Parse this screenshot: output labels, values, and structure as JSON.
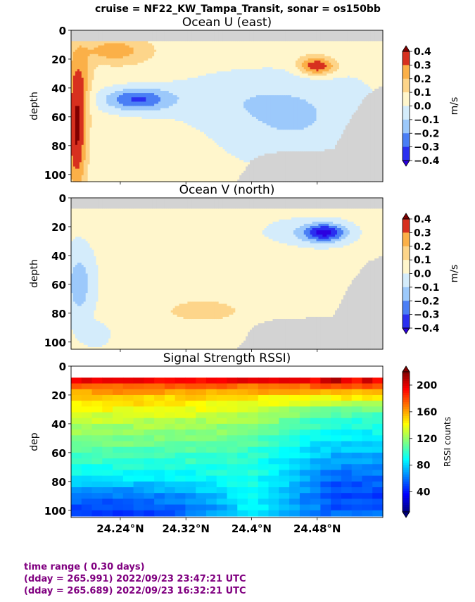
{
  "suptitle": "cruise = NF22_KW_Tampa_Transit,  sonar = os150bb",
  "footer": {
    "line1": "time range ( 0.30 days)",
    "line2": "(dday = 265.991) 2022/09/23 23:47:21 UTC",
    "line3": "(dday = 265.689) 2022/09/23 16:32:21 UTC"
  },
  "colors": {
    "nodata": "#d3d3d3",
    "footer_text": "#800080",
    "velocity_scale": [
      "#2c00e0",
      "#2a2ff0",
      "#4a7ef5",
      "#9cc9fb",
      "#d4ecfb",
      "#fff6cc",
      "#fdd58a",
      "#fbb048",
      "#f47b22",
      "#d7301f",
      "#800000"
    ]
  },
  "chart_data": [
    {
      "type": "heatmap",
      "id": "u",
      "title": "Ocean U (east)",
      "ylabel": "depth",
      "xlabel": "",
      "xlim": [
        24.18,
        24.56
      ],
      "ylim": [
        105,
        0
      ],
      "yticks": [
        0,
        20,
        40,
        60,
        80,
        100
      ],
      "xticks": [
        24.24,
        24.32,
        24.4,
        24.48
      ],
      "xtick_labels_shown": false,
      "colorbar": {
        "label": "m/s",
        "ticks": [
          0.4,
          0.3,
          0.2,
          0.1,
          0.0,
          -0.1,
          -0.2,
          -0.3,
          -0.4
        ],
        "tick_labels": [
          "0.4",
          "0.3",
          "0.2",
          "0.1",
          "0.0",
          "−0.1",
          "−0.2",
          "−0.3",
          "−0.4"
        ],
        "extend": "both"
      },
      "levels": [
        -0.4,
        -0.3,
        -0.2,
        -0.1,
        0.0,
        0.1,
        0.2,
        0.3,
        0.4
      ],
      "nodata_top_depth": 8,
      "bottom_mask_depth_by_x": [
        [
          24.18,
          106
        ],
        [
          24.38,
          106
        ],
        [
          24.39,
          98
        ],
        [
          24.4,
          90
        ],
        [
          24.42,
          85
        ],
        [
          24.5,
          83
        ],
        [
          24.52,
          62
        ],
        [
          24.54,
          45
        ],
        [
          24.56,
          38
        ]
      ],
      "features": [
        {
          "x": 24.187,
          "y": 75,
          "sx": 0.012,
          "sy": 40,
          "amp": 0.36
        },
        {
          "x": 24.19,
          "y": 35,
          "sx": 0.014,
          "sy": 26,
          "amp": 0.18
        },
        {
          "x": 24.232,
          "y": 14,
          "sx": 0.035,
          "sy": 8,
          "amp": 0.2
        },
        {
          "x": 24.28,
          "y": 35,
          "sx": 0.1,
          "sy": 35,
          "amp": 0.08
        },
        {
          "x": 24.48,
          "y": 25,
          "sx": 0.022,
          "sy": 6,
          "amp": 0.38
        },
        {
          "x": 24.44,
          "y": 15,
          "sx": 0.06,
          "sy": 10,
          "amp": 0.05
        },
        {
          "x": 24.26,
          "y": 48,
          "sx": 0.04,
          "sy": 8,
          "amp": -0.33
        },
        {
          "x": 24.32,
          "y": 45,
          "sx": 0.1,
          "sy": 20,
          "amp": -0.12
        },
        {
          "x": 24.45,
          "y": 60,
          "sx": 0.09,
          "sy": 30,
          "amp": -0.14
        }
      ]
    },
    {
      "type": "heatmap",
      "id": "v",
      "title": "Ocean V (north)",
      "ylabel": "depth",
      "xlabel": "",
      "xlim": [
        24.18,
        24.56
      ],
      "ylim": [
        105,
        0
      ],
      "yticks": [
        0,
        20,
        40,
        60,
        80,
        100
      ],
      "xticks": [
        24.24,
        24.32,
        24.4,
        24.48
      ],
      "xtick_labels_shown": false,
      "colorbar": {
        "label": "m/s",
        "ticks": [
          0.4,
          0.3,
          0.2,
          0.1,
          0.0,
          -0.1,
          -0.2,
          -0.3,
          -0.4
        ],
        "tick_labels": [
          "0.4",
          "0.3",
          "0.2",
          "0.1",
          "0.0",
          "−0.1",
          "−0.2",
          "−0.3",
          "−0.4"
        ],
        "extend": "both"
      },
      "levels": [
        -0.4,
        -0.3,
        -0.2,
        -0.1,
        0.0,
        0.1,
        0.2,
        0.3,
        0.4
      ],
      "nodata_top_depth": 8,
      "bottom_mask_depth_by_x": [
        [
          24.18,
          106
        ],
        [
          24.38,
          106
        ],
        [
          24.39,
          100
        ],
        [
          24.4,
          90
        ],
        [
          24.42,
          85
        ],
        [
          24.5,
          82
        ],
        [
          24.52,
          60
        ],
        [
          24.54,
          45
        ],
        [
          24.56,
          40
        ]
      ],
      "features": [
        {
          "x": 24.49,
          "y": 24,
          "sx": 0.025,
          "sy": 6,
          "amp": -0.42
        },
        {
          "x": 24.46,
          "y": 25,
          "sx": 0.05,
          "sy": 10,
          "amp": -0.1
        },
        {
          "x": 24.19,
          "y": 60,
          "sx": 0.016,
          "sy": 25,
          "amp": -0.18
        },
        {
          "x": 24.21,
          "y": 95,
          "sx": 0.015,
          "sy": 7,
          "amp": -0.12
        },
        {
          "x": 24.31,
          "y": 55,
          "sx": 0.12,
          "sy": 30,
          "amp": -0.02
        },
        {
          "x": 24.34,
          "y": 78,
          "sx": 0.06,
          "sy": 10,
          "amp": 0.12
        },
        {
          "x": 24.3,
          "y": 20,
          "sx": 0.08,
          "sy": 12,
          "amp": 0.06
        },
        {
          "x": 24.42,
          "y": 40,
          "sx": 0.05,
          "sy": 12,
          "amp": 0.05
        }
      ]
    },
    {
      "type": "heatmap",
      "id": "rssi",
      "title": "Signal Strength RSSI)",
      "ylabel": "dep",
      "xlabel": "",
      "xlim": [
        24.18,
        24.56
      ],
      "ylim": [
        105,
        0
      ],
      "yticks": [
        0,
        20,
        40,
        60,
        80,
        100
      ],
      "xticks": [
        24.24,
        24.32,
        24.4,
        24.48
      ],
      "xtick_labels": [
        "24.24°N",
        "24.32°N",
        "24.4°N",
        "24.48°N"
      ],
      "colorbar": {
        "label": "RSSI counts",
        "ticks": [
          200,
          160,
          120,
          80,
          40
        ],
        "tick_labels": [
          "200",
          "160",
          "120",
          "80",
          "40"
        ],
        "range": [
          10,
          220
        ],
        "extend": "both"
      },
      "grid_columns": 30,
      "grid_rows": 24,
      "first_bin_depth": 8,
      "bin_size": 4,
      "top_value": 195,
      "surface_values": [
        {
          "x": 24.49,
          "v": 210
        },
        {
          "x": 24.505,
          "v": 215
        },
        {
          "x": 24.52,
          "v": 200
        },
        {
          "x": 24.54,
          "v": 210
        }
      ],
      "profile_depth": [
        8,
        20,
        30,
        40,
        50,
        60,
        70,
        80,
        90,
        100,
        105
      ],
      "profile_values_west": [
        195,
        155,
        140,
        125,
        115,
        105,
        95,
        80,
        60,
        50,
        45
      ],
      "profile_values_mid": [
        190,
        150,
        130,
        118,
        108,
        100,
        95,
        95,
        92,
        88,
        85
      ],
      "profile_values_east": [
        200,
        150,
        110,
        95,
        85,
        75,
        65,
        55,
        50,
        55,
        60
      ],
      "mid_x": 24.4,
      "east_x": 24.5
    }
  ]
}
